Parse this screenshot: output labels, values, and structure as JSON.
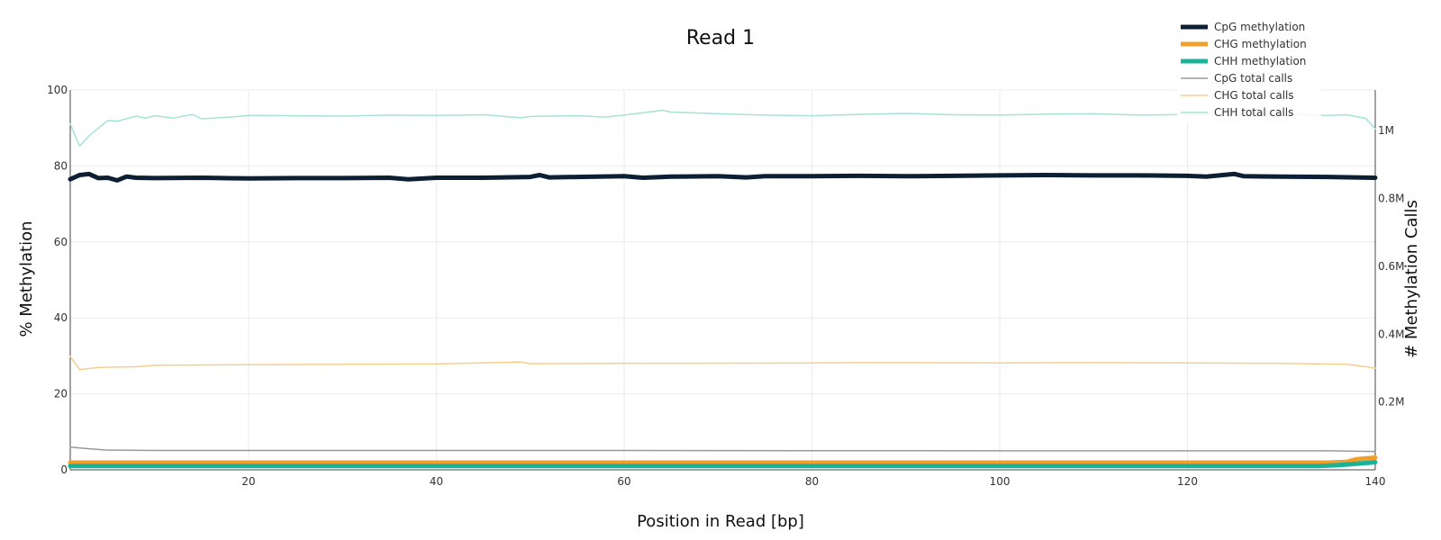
{
  "chart_data": {
    "type": "line",
    "title": "Read 1",
    "xlabel": "Position in Read [bp]",
    "ylabel": "% Methylation",
    "y2label": "# Methylation Calls",
    "xlim": [
      1,
      140
    ],
    "ylim": [
      0,
      100
    ],
    "y2lim": [
      0,
      1120000
    ],
    "xticks": [
      20,
      40,
      60,
      80,
      100,
      120,
      140
    ],
    "xtick_labels": [
      "20",
      "40",
      "60",
      "80",
      "100",
      "120",
      "140"
    ],
    "yticks": [
      0,
      20,
      40,
      60,
      80,
      100
    ],
    "ytick_labels": [
      "0",
      "20",
      "40",
      "60",
      "80",
      "100"
    ],
    "y2ticks": [
      200000,
      400000,
      600000,
      800000,
      1000000
    ],
    "y2tick_labels": [
      "0.2M",
      "0.4M",
      "0.6M",
      "0.8M",
      "1M"
    ],
    "grid": true,
    "legend_position": "top-right",
    "series": [
      {
        "name": "CpG methylation",
        "axis": "left",
        "color": "#0d1f33",
        "style": "thick",
        "points": [
          [
            1,
            76.5
          ],
          [
            2,
            77.6
          ],
          [
            3,
            77.9
          ],
          [
            4,
            76.8
          ],
          [
            5,
            76.9
          ],
          [
            6,
            76.2
          ],
          [
            7,
            77.2
          ],
          [
            8,
            76.9
          ],
          [
            10,
            76.8
          ],
          [
            15,
            76.9
          ],
          [
            20,
            76.7
          ],
          [
            25,
            76.8
          ],
          [
            30,
            76.8
          ],
          [
            35,
            76.9
          ],
          [
            37,
            76.5
          ],
          [
            40,
            76.9
          ],
          [
            45,
            76.9
          ],
          [
            50,
            77.1
          ],
          [
            51,
            77.6
          ],
          [
            52,
            77.0
          ],
          [
            55,
            77.1
          ],
          [
            60,
            77.3
          ],
          [
            62,
            76.9
          ],
          [
            65,
            77.2
          ],
          [
            70,
            77.3
          ],
          [
            73,
            77.0
          ],
          [
            75,
            77.3
          ],
          [
            80,
            77.3
          ],
          [
            85,
            77.4
          ],
          [
            90,
            77.3
          ],
          [
            95,
            77.4
          ],
          [
            100,
            77.5
          ],
          [
            105,
            77.6
          ],
          [
            110,
            77.5
          ],
          [
            115,
            77.5
          ],
          [
            120,
            77.4
          ],
          [
            122,
            77.2
          ],
          [
            125,
            77.9
          ],
          [
            126,
            77.3
          ],
          [
            130,
            77.2
          ],
          [
            135,
            77.1
          ],
          [
            140,
            76.9
          ]
        ]
      },
      {
        "name": "CHG methylation",
        "axis": "left",
        "color": "#f0a02b",
        "style": "thick",
        "points": [
          [
            1,
            1.9
          ],
          [
            20,
            1.9
          ],
          [
            60,
            1.9
          ],
          [
            100,
            1.9
          ],
          [
            135,
            1.9
          ],
          [
            137,
            2.1
          ],
          [
            138,
            2.8
          ],
          [
            140,
            3.2
          ]
        ]
      },
      {
        "name": "CHH methylation",
        "axis": "left",
        "color": "#1ab39a",
        "style": "thick",
        "points": [
          [
            1,
            1.0
          ],
          [
            20,
            1.0
          ],
          [
            60,
            1.0
          ],
          [
            100,
            1.0
          ],
          [
            134,
            1.0
          ],
          [
            136,
            1.2
          ],
          [
            138,
            1.6
          ],
          [
            140,
            2.0
          ]
        ]
      },
      {
        "name": "CpG total calls",
        "axis": "right",
        "color": "#9a9a9a",
        "style": "thin",
        "points": [
          [
            1,
            67000
          ],
          [
            3,
            62000
          ],
          [
            5,
            58000
          ],
          [
            10,
            57000
          ],
          [
            20,
            57000
          ],
          [
            60,
            57000
          ],
          [
            100,
            56000
          ],
          [
            135,
            56000
          ],
          [
            140,
            54000
          ]
        ]
      },
      {
        "name": "CHG total calls",
        "axis": "right",
        "color": "#f5cf8e",
        "style": "thin",
        "points": [
          [
            1,
            335000
          ],
          [
            2,
            295000
          ],
          [
            4,
            302000
          ],
          [
            8,
            304000
          ],
          [
            10,
            308000
          ],
          [
            20,
            310000
          ],
          [
            40,
            312000
          ],
          [
            49,
            318000
          ],
          [
            50,
            313000
          ],
          [
            60,
            314000
          ],
          [
            80,
            315000
          ],
          [
            86,
            316000
          ],
          [
            100,
            315000
          ],
          [
            110,
            316000
          ],
          [
            120,
            315000
          ],
          [
            130,
            314000
          ],
          [
            137,
            311000
          ],
          [
            139,
            304000
          ],
          [
            140,
            300000
          ]
        ]
      },
      {
        "name": "CHH total calls",
        "axis": "right",
        "color": "#a6e2d5",
        "style": "thin",
        "points": [
          [
            1,
            1020000
          ],
          [
            2,
            955000
          ],
          [
            3,
            985000
          ],
          [
            5,
            1030000
          ],
          [
            6,
            1028000
          ],
          [
            8,
            1043000
          ],
          [
            9,
            1037000
          ],
          [
            10,
            1044000
          ],
          [
            12,
            1037000
          ],
          [
            14,
            1048000
          ],
          [
            15,
            1035000
          ],
          [
            18,
            1040000
          ],
          [
            20,
            1045000
          ],
          [
            25,
            1044000
          ],
          [
            30,
            1043000
          ],
          [
            35,
            1046000
          ],
          [
            40,
            1045000
          ],
          [
            45,
            1047000
          ],
          [
            49,
            1038000
          ],
          [
            50,
            1042000
          ],
          [
            55,
            1044000
          ],
          [
            58,
            1040000
          ],
          [
            60,
            1046000
          ],
          [
            64,
            1060000
          ],
          [
            65,
            1055000
          ],
          [
            70,
            1050000
          ],
          [
            75,
            1046000
          ],
          [
            80,
            1044000
          ],
          [
            85,
            1048000
          ],
          [
            90,
            1051000
          ],
          [
            95,
            1047000
          ],
          [
            100,
            1046000
          ],
          [
            105,
            1049000
          ],
          [
            110,
            1050000
          ],
          [
            115,
            1046000
          ],
          [
            120,
            1048000
          ],
          [
            125,
            1047000
          ],
          [
            130,
            1049000
          ],
          [
            135,
            1045000
          ],
          [
            137,
            1047000
          ],
          [
            139,
            1036000
          ],
          [
            140,
            1005000
          ]
        ]
      }
    ]
  }
}
